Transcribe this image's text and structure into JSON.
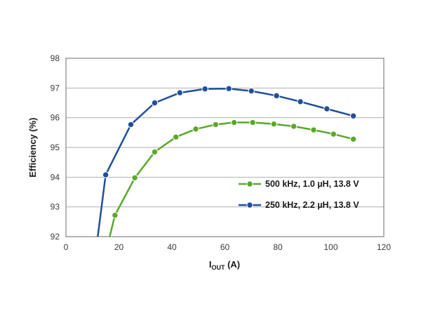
{
  "chart_data": {
    "type": "line",
    "ylabel": "Efficiency (%)",
    "xlabel_main": "I",
    "xlabel_sub": "OUT",
    "xlabel_unit": " (A)",
    "xlim": [
      0,
      120
    ],
    "ylim": [
      92,
      98
    ],
    "x_ticks": [
      0,
      20,
      40,
      60,
      80,
      100,
      120
    ],
    "y_ticks": [
      92,
      93,
      94,
      95,
      96,
      97,
      98
    ],
    "grid": "horizontal",
    "legend_position": "lower-right",
    "series": [
      {
        "name": "500 kHz, 1.0 µH, 13.8 V",
        "color": "#5aa82a",
        "x": [
          16.5,
          18.5,
          26,
          33.5,
          41.5,
          49,
          56.5,
          63.5,
          70.5,
          78.5,
          86,
          93.5,
          101,
          108.5
        ],
        "y": [
          92,
          92.72,
          93.98,
          94.85,
          95.35,
          95.62,
          95.77,
          95.84,
          95.84,
          95.79,
          95.71,
          95.59,
          95.45,
          95.28
        ],
        "markers": [
          false,
          true,
          true,
          true,
          true,
          true,
          true,
          true,
          true,
          true,
          true,
          true,
          true,
          true
        ]
      },
      {
        "name": "250 kHz, 2.2 µH, 13.8 V",
        "color": "#1f4f9a",
        "x": [
          12,
          15,
          24.5,
          33.5,
          43,
          52.5,
          61.5,
          70,
          79.5,
          88.5,
          98.5,
          108.5
        ],
        "y": [
          92,
          94.08,
          95.77,
          96.5,
          96.84,
          96.97,
          96.98,
          96.9,
          96.74,
          96.54,
          96.3,
          96.06
        ],
        "markers": [
          false,
          true,
          true,
          true,
          true,
          true,
          true,
          true,
          true,
          true,
          true,
          true
        ]
      }
    ]
  }
}
